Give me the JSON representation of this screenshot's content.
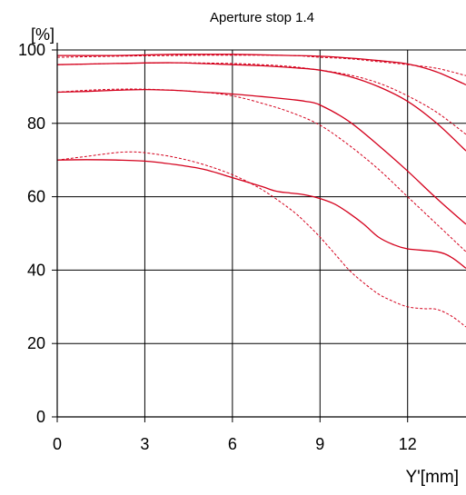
{
  "chart_data": {
    "type": "line",
    "title": "Aperture stop 1.4",
    "xlabel": "Y'[mm]",
    "ylabel": "[%]",
    "xlim": [
      0,
      14
    ],
    "ylim": [
      0,
      100
    ],
    "xticks": [
      0,
      3,
      6,
      9,
      12
    ],
    "yticks": [
      0,
      20,
      40,
      60,
      80,
      100
    ],
    "grid": true,
    "line_color": "#d4001c",
    "series": [
      {
        "style": "solid",
        "x": [
          0,
          2,
          4,
          6,
          8,
          9,
          10,
          11,
          12,
          13,
          14
        ],
        "y": [
          98.5,
          98.5,
          98.8,
          98.8,
          98.5,
          98.3,
          97.8,
          97.1,
          96.2,
          94.0,
          90.5
        ]
      },
      {
        "style": "dashed",
        "x": [
          0,
          2,
          4,
          6,
          8,
          9,
          10,
          11,
          12,
          13,
          14
        ],
        "y": [
          98.0,
          98.3,
          98.5,
          98.6,
          98.5,
          98.0,
          97.6,
          96.8,
          96.0,
          95.0,
          93.0
        ]
      },
      {
        "style": "solid",
        "x": [
          0,
          2,
          4,
          6,
          7,
          8,
          9,
          10,
          11,
          12,
          13,
          14
        ],
        "y": [
          96.0,
          96.3,
          96.5,
          96.0,
          95.7,
          95.2,
          94.5,
          92.8,
          90.0,
          86.0,
          80.0,
          72.5
        ]
      },
      {
        "style": "dashed",
        "x": [
          0,
          2,
          4,
          6,
          7,
          8,
          9,
          10,
          11,
          12,
          13,
          14
        ],
        "y": [
          96.0,
          96.3,
          96.5,
          96.3,
          96.0,
          95.5,
          94.5,
          93.2,
          91.0,
          87.5,
          83.0,
          77.0
        ]
      },
      {
        "style": "solid",
        "x": [
          0,
          1,
          2,
          3,
          4,
          5,
          6,
          7,
          8,
          8.5,
          9,
          10,
          11,
          12,
          13,
          14
        ],
        "y": [
          88.5,
          88.7,
          89.0,
          89.2,
          89.0,
          88.5,
          88.0,
          87.3,
          86.5,
          86.0,
          85.0,
          80.5,
          74.0,
          67.0,
          59.5,
          52.5
        ]
      },
      {
        "style": "dashed",
        "x": [
          0,
          1,
          2,
          3,
          4,
          5,
          6,
          7,
          8,
          9,
          10,
          11,
          12,
          13,
          14
        ],
        "y": [
          88.5,
          89.0,
          89.3,
          89.3,
          89.0,
          88.5,
          87.5,
          85.5,
          83.0,
          79.5,
          74.0,
          67.5,
          60.0,
          52.5,
          45.0
        ]
      },
      {
        "style": "solid",
        "x": [
          0,
          1,
          2,
          3,
          4,
          5,
          6,
          7,
          7.5,
          8,
          8.5,
          9,
          9.5,
          10,
          10.5,
          11,
          11.5,
          12,
          13,
          13.5,
          14
        ],
        "y": [
          70.0,
          70.1,
          70.0,
          69.7,
          68.8,
          67.5,
          65.2,
          62.8,
          61.5,
          61.0,
          60.5,
          59.5,
          58.0,
          55.5,
          52.5,
          49.0,
          47.0,
          45.8,
          45.0,
          43.5,
          40.5
        ]
      },
      {
        "style": "dashed",
        "x": [
          0,
          1,
          2,
          2.5,
          3,
          4,
          5,
          6,
          7,
          8,
          8.5,
          9,
          9.5,
          10,
          10.5,
          11,
          11.5,
          12,
          12.5,
          13,
          13.5,
          14
        ],
        "y": [
          70.0,
          71.0,
          72.0,
          72.2,
          72.0,
          70.8,
          68.8,
          66.0,
          62.0,
          56.5,
          53.0,
          49.0,
          44.5,
          40.0,
          36.5,
          33.5,
          31.5,
          30.0,
          29.5,
          29.3,
          27.5,
          24.5
        ]
      }
    ]
  }
}
